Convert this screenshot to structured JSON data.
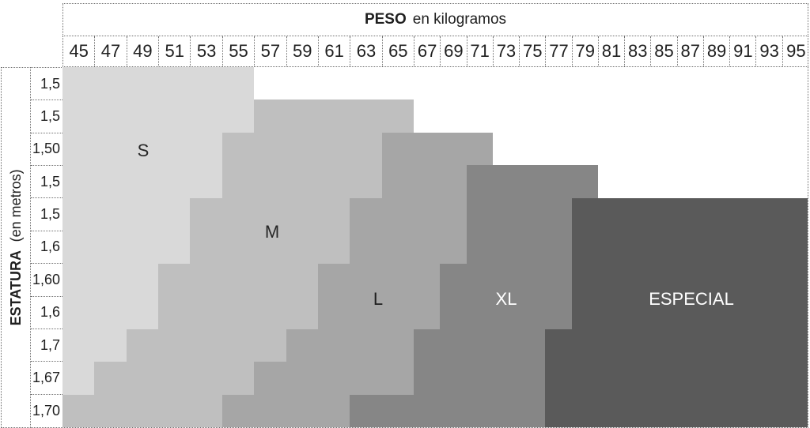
{
  "chart_data": {
    "type": "heatmap",
    "title": "PESO en kilogramos",
    "x_axis_title_bold": "PESO",
    "x_axis_title_rest": "en kilogramos",
    "y_axis_title_bold": "ESTATURA",
    "y_axis_title_rest": "(en metros)",
    "x_categories": [
      "45",
      "47",
      "49",
      "51",
      "53",
      "55",
      "57",
      "59",
      "61",
      "63",
      "65",
      "67",
      "69",
      "71",
      "73",
      "75",
      "77",
      "79",
      "81",
      "83",
      "85",
      "87",
      "89",
      "91",
      "93",
      "95"
    ],
    "y_categories": [
      "1,5",
      "1,5",
      "1,50",
      "1,5",
      "1,5",
      "1,6",
      "1,60",
      "1,6",
      "1,7",
      "1,67",
      "1,70"
    ],
    "legend_position": "none",
    "grid": "dotted-borders-on-axes-only",
    "background": "#ffffff",
    "sizes": [
      {
        "name": "S",
        "color": "#d9d9d9",
        "label_color": "#262626"
      },
      {
        "name": "M",
        "color": "#bfbfbf",
        "label_color": "#262626"
      },
      {
        "name": "L",
        "color": "#a6a6a6",
        "label_color": "#1f1f1f"
      },
      {
        "name": "XL",
        "color": "#868686",
        "label_color": "#ffffff"
      },
      {
        "name": "ESPECIAL",
        "color": "#5a5a5a",
        "label_color": "#ffffff"
      }
    ],
    "rows": [
      {
        "height": "1,5",
        "spans": [
          {
            "size": "S",
            "from": 45,
            "to": 55
          }
        ]
      },
      {
        "height": "1,5",
        "spans": [
          {
            "size": "S",
            "from": 45,
            "to": 55
          },
          {
            "size": "M",
            "from": 57,
            "to": 65
          }
        ]
      },
      {
        "height": "1,50",
        "spans": [
          {
            "size": "S",
            "from": 45,
            "to": 53
          },
          {
            "size": "M",
            "from": 55,
            "to": 63
          },
          {
            "size": "L",
            "from": 65,
            "to": 71
          }
        ]
      },
      {
        "height": "1,5",
        "spans": [
          {
            "size": "S",
            "from": 45,
            "to": 53
          },
          {
            "size": "M",
            "from": 55,
            "to": 63
          },
          {
            "size": "L",
            "from": 65,
            "to": 69
          },
          {
            "size": "XL",
            "from": 71,
            "to": 79
          }
        ]
      },
      {
        "height": "1,5",
        "spans": [
          {
            "size": "S",
            "from": 45,
            "to": 51
          },
          {
            "size": "M",
            "from": 53,
            "to": 61
          },
          {
            "size": "L",
            "from": 63,
            "to": 69
          },
          {
            "size": "XL",
            "from": 71,
            "to": 77
          },
          {
            "size": "ESPECIAL",
            "from": 79,
            "to": 95
          }
        ]
      },
      {
        "height": "1,6",
        "spans": [
          {
            "size": "S",
            "from": 45,
            "to": 51
          },
          {
            "size": "M",
            "from": 53,
            "to": 61
          },
          {
            "size": "L",
            "from": 63,
            "to": 69
          },
          {
            "size": "XL",
            "from": 71,
            "to": 77
          },
          {
            "size": "ESPECIAL",
            "from": 79,
            "to": 95
          }
        ]
      },
      {
        "height": "1,60",
        "spans": [
          {
            "size": "S",
            "from": 45,
            "to": 49
          },
          {
            "size": "M",
            "from": 51,
            "to": 59
          },
          {
            "size": "L",
            "from": 61,
            "to": 67
          },
          {
            "size": "XL",
            "from": 69,
            "to": 77
          },
          {
            "size": "ESPECIAL",
            "from": 79,
            "to": 95
          }
        ]
      },
      {
        "height": "1,6",
        "spans": [
          {
            "size": "S",
            "from": 45,
            "to": 49
          },
          {
            "size": "M",
            "from": 51,
            "to": 59
          },
          {
            "size": "L",
            "from": 61,
            "to": 67
          },
          {
            "size": "XL",
            "from": 69,
            "to": 77
          },
          {
            "size": "ESPECIAL",
            "from": 79,
            "to": 95
          }
        ]
      },
      {
        "height": "1,7",
        "spans": [
          {
            "size": "S",
            "from": 45,
            "to": 47
          },
          {
            "size": "M",
            "from": 49,
            "to": 57
          },
          {
            "size": "L",
            "from": 59,
            "to": 65
          },
          {
            "size": "XL",
            "from": 67,
            "to": 75
          },
          {
            "size": "ESPECIAL",
            "from": 77,
            "to": 95
          }
        ]
      },
      {
        "height": "1,67",
        "spans": [
          {
            "size": "S",
            "from": 45,
            "to": 45
          },
          {
            "size": "M",
            "from": 47,
            "to": 55
          },
          {
            "size": "L",
            "from": 57,
            "to": 65
          },
          {
            "size": "XL",
            "from": 67,
            "to": 75
          },
          {
            "size": "ESPECIAL",
            "from": 77,
            "to": 95
          }
        ]
      },
      {
        "height": "1,70",
        "spans": [
          {
            "size": "M",
            "from": 45,
            "to": 53
          },
          {
            "size": "L",
            "from": 55,
            "to": 61
          },
          {
            "size": "XL",
            "from": 63,
            "to": 75
          },
          {
            "size": "ESPECIAL",
            "from": 77,
            "to": 95
          }
        ]
      }
    ]
  }
}
